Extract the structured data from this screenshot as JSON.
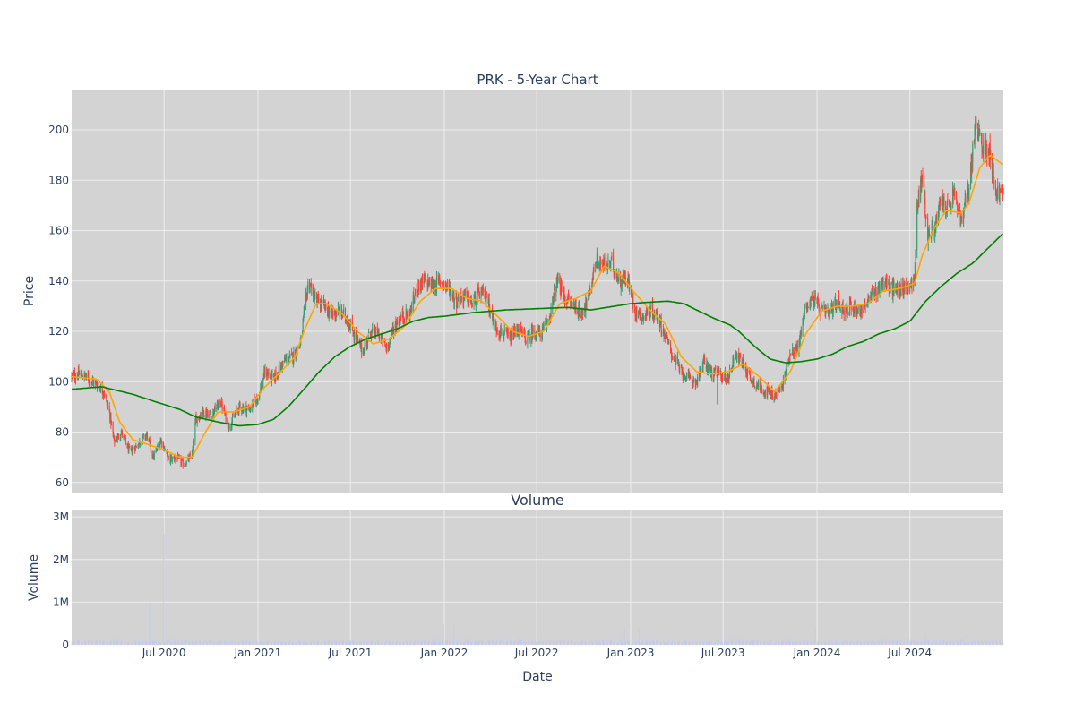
{
  "chart_data": [
    {
      "type": "candlestick",
      "title": "PRK - 5-Year Chart",
      "ylabel": "Price",
      "ylim": [
        56,
        216
      ],
      "yticks": [
        60,
        80,
        100,
        120,
        140,
        160,
        180,
        200
      ],
      "x_start": "2020-01-02",
      "x_end": "2024-12-31",
      "grid": true,
      "colors": {
        "background": "#d3d3d3",
        "grid": "#eeeeee",
        "up": "#3d9970",
        "down": "#ff4136",
        "ma_short": "#ffa500",
        "ma_long": "#008000"
      },
      "close_path": [
        [
          "2020-01-02",
          102
        ],
        [
          "2020-01-20",
          103
        ],
        [
          "2020-02-05",
          101
        ],
        [
          "2020-02-20",
          99
        ],
        [
          "2020-03-05",
          96
        ],
        [
          "2020-03-16",
          88
        ],
        [
          "2020-03-25",
          76
        ],
        [
          "2020-04-08",
          80
        ],
        [
          "2020-04-25",
          72
        ],
        [
          "2020-05-10",
          75
        ],
        [
          "2020-05-28",
          79
        ],
        [
          "2020-06-10",
          70
        ],
        [
          "2020-06-25",
          77
        ],
        [
          "2020-07-10",
          69
        ],
        [
          "2020-07-25",
          70
        ],
        [
          "2020-08-10",
          67
        ],
        [
          "2020-08-25",
          71
        ],
        [
          "2020-09-01",
          85
        ],
        [
          "2020-09-15",
          88
        ],
        [
          "2020-10-01",
          87
        ],
        [
          "2020-10-20",
          92
        ],
        [
          "2020-11-05",
          82
        ],
        [
          "2020-11-25",
          90
        ],
        [
          "2020-12-15",
          89
        ],
        [
          "2021-01-01",
          94
        ],
        [
          "2021-01-15",
          104
        ],
        [
          "2021-02-01",
          101
        ],
        [
          "2021-02-20",
          108
        ],
        [
          "2021-03-10",
          110
        ],
        [
          "2021-03-25",
          115
        ],
        [
          "2021-04-10",
          140
        ],
        [
          "2021-04-25",
          132
        ],
        [
          "2021-05-10",
          130
        ],
        [
          "2021-05-25",
          127
        ],
        [
          "2021-06-10",
          128
        ],
        [
          "2021-06-25",
          125
        ],
        [
          "2021-07-10",
          118
        ],
        [
          "2021-07-25",
          112
        ],
        [
          "2021-08-10",
          120
        ],
        [
          "2021-08-25",
          119
        ],
        [
          "2021-09-10",
          113
        ],
        [
          "2021-09-25",
          122
        ],
        [
          "2021-10-10",
          126
        ],
        [
          "2021-10-25",
          127
        ],
        [
          "2021-11-10",
          138
        ],
        [
          "2021-11-25",
          140
        ],
        [
          "2021-12-10",
          138
        ],
        [
          "2021-12-25",
          140
        ],
        [
          "2022-01-10",
          137
        ],
        [
          "2022-01-25",
          132
        ],
        [
          "2022-02-10",
          134
        ],
        [
          "2022-02-25",
          131
        ],
        [
          "2022-03-10",
          135
        ],
        [
          "2022-03-25",
          134
        ],
        [
          "2022-04-10",
          122
        ],
        [
          "2022-04-25",
          119
        ],
        [
          "2022-05-10",
          117
        ],
        [
          "2022-05-25",
          121
        ],
        [
          "2022-06-10",
          117
        ],
        [
          "2022-06-25",
          120
        ],
        [
          "2022-07-10",
          119
        ],
        [
          "2022-07-25",
          125
        ],
        [
          "2022-08-10",
          140
        ],
        [
          "2022-08-25",
          133
        ],
        [
          "2022-09-10",
          131
        ],
        [
          "2022-09-25",
          127
        ],
        [
          "2022-10-10",
          133
        ],
        [
          "2022-10-25",
          148
        ],
        [
          "2022-11-10",
          146
        ],
        [
          "2022-11-25",
          147
        ],
        [
          "2022-12-10",
          140
        ],
        [
          "2022-12-25",
          141
        ],
        [
          "2023-01-10",
          128
        ],
        [
          "2023-01-25",
          126
        ],
        [
          "2023-02-10",
          128
        ],
        [
          "2023-02-25",
          125
        ],
        [
          "2023-03-10",
          118
        ],
        [
          "2023-03-25",
          110
        ],
        [
          "2023-04-10",
          104
        ],
        [
          "2023-04-25",
          101
        ],
        [
          "2023-05-10",
          100
        ],
        [
          "2023-05-25",
          108
        ],
        [
          "2023-06-10",
          103
        ],
        [
          "2023-06-25",
          103
        ],
        [
          "2023-07-10",
          101
        ],
        [
          "2023-07-25",
          111
        ],
        [
          "2023-08-10",
          107
        ],
        [
          "2023-08-25",
          101
        ],
        [
          "2023-09-10",
          98
        ],
        [
          "2023-09-25",
          96
        ],
        [
          "2023-10-10",
          94
        ],
        [
          "2023-10-25",
          98
        ],
        [
          "2023-11-10",
          112
        ],
        [
          "2023-11-25",
          113
        ],
        [
          "2023-12-10",
          130
        ],
        [
          "2023-12-25",
          133
        ],
        [
          "2024-01-10",
          128
        ],
        [
          "2024-01-25",
          127
        ],
        [
          "2024-02-10",
          132
        ],
        [
          "2024-02-25",
          128
        ],
        [
          "2024-03-10",
          130
        ],
        [
          "2024-03-25",
          128
        ],
        [
          "2024-04-10",
          132
        ],
        [
          "2024-04-25",
          136
        ],
        [
          "2024-05-10",
          140
        ],
        [
          "2024-05-25",
          137
        ],
        [
          "2024-06-10",
          136
        ],
        [
          "2024-06-25",
          138
        ],
        [
          "2024-07-10",
          140
        ],
        [
          "2024-07-15",
          170
        ],
        [
          "2024-07-25",
          182
        ],
        [
          "2024-08-05",
          158
        ],
        [
          "2024-08-20",
          162
        ],
        [
          "2024-09-01",
          172
        ],
        [
          "2024-09-15",
          168
        ],
        [
          "2024-09-25",
          175
        ],
        [
          "2024-10-10",
          163
        ],
        [
          "2024-10-25",
          178
        ],
        [
          "2024-11-06",
          201
        ],
        [
          "2024-11-20",
          194
        ],
        [
          "2024-12-05",
          192
        ],
        [
          "2024-12-15",
          176
        ],
        [
          "2024-12-31",
          174
        ]
      ],
      "ma_short_path": [
        [
          "2020-01-02",
          102
        ],
        [
          "2020-02-20",
          101
        ],
        [
          "2020-03-16",
          96
        ],
        [
          "2020-04-05",
          84
        ],
        [
          "2020-05-01",
          77
        ],
        [
          "2020-06-01",
          75
        ],
        [
          "2020-07-01",
          73
        ],
        [
          "2020-08-01",
          70
        ],
        [
          "2020-08-25",
          70
        ],
        [
          "2020-09-20",
          80
        ],
        [
          "2020-10-15",
          88
        ],
        [
          "2020-11-15",
          88
        ],
        [
          "2020-12-15",
          90
        ],
        [
          "2021-01-15",
          98
        ],
        [
          "2021-02-15",
          104
        ],
        [
          "2021-03-15",
          110
        ],
        [
          "2021-04-01",
          120
        ],
        [
          "2021-04-25",
          131
        ],
        [
          "2021-05-15",
          131
        ],
        [
          "2021-06-15",
          127
        ],
        [
          "2021-07-15",
          120
        ],
        [
          "2021-08-15",
          115
        ],
        [
          "2021-09-15",
          117
        ],
        [
          "2021-10-15",
          122
        ],
        [
          "2021-11-15",
          132
        ],
        [
          "2021-12-15",
          137
        ],
        [
          "2022-01-15",
          137
        ],
        [
          "2022-02-15",
          133
        ],
        [
          "2022-03-15",
          132
        ],
        [
          "2022-04-15",
          126
        ],
        [
          "2022-05-15",
          120
        ],
        [
          "2022-06-15",
          118
        ],
        [
          "2022-07-15",
          120
        ],
        [
          "2022-08-15",
          131
        ],
        [
          "2022-09-15",
          133
        ],
        [
          "2022-10-15",
          136
        ],
        [
          "2022-11-10",
          146
        ],
        [
          "2022-12-10",
          143
        ],
        [
          "2023-01-10",
          135
        ],
        [
          "2023-02-10",
          128
        ],
        [
          "2023-03-10",
          123
        ],
        [
          "2023-04-10",
          110
        ],
        [
          "2023-05-10",
          104
        ],
        [
          "2023-06-10",
          103
        ],
        [
          "2023-07-10",
          104
        ],
        [
          "2023-08-10",
          107
        ],
        [
          "2023-09-10",
          102
        ],
        [
          "2023-10-10",
          96
        ],
        [
          "2023-11-10",
          104
        ],
        [
          "2023-12-10",
          119
        ],
        [
          "2024-01-10",
          128
        ],
        [
          "2024-02-10",
          130
        ],
        [
          "2024-03-10",
          130
        ],
        [
          "2024-04-10",
          131
        ],
        [
          "2024-05-10",
          136
        ],
        [
          "2024-06-10",
          137
        ],
        [
          "2024-07-10",
          139
        ],
        [
          "2024-07-25",
          150
        ],
        [
          "2024-08-15",
          160
        ],
        [
          "2024-09-10",
          168
        ],
        [
          "2024-10-10",
          167
        ],
        [
          "2024-10-25",
          171
        ],
        [
          "2024-11-15",
          185
        ],
        [
          "2024-12-05",
          190
        ],
        [
          "2024-12-31",
          186
        ]
      ],
      "ma_long_path": [
        [
          "2020-01-02",
          97
        ],
        [
          "2020-03-01",
          98
        ],
        [
          "2020-05-01",
          95
        ],
        [
          "2020-06-15",
          92
        ],
        [
          "2020-08-01",
          89
        ],
        [
          "2020-09-01",
          86
        ],
        [
          "2020-10-15",
          84
        ],
        [
          "2020-11-25",
          82.5
        ],
        [
          "2020-12-31",
          83
        ],
        [
          "2021-01-31",
          85
        ],
        [
          "2021-03-01",
          90
        ],
        [
          "2021-04-01",
          97
        ],
        [
          "2021-05-01",
          104
        ],
        [
          "2021-06-01",
          110
        ],
        [
          "2021-07-01",
          114
        ],
        [
          "2021-08-01",
          117
        ],
        [
          "2021-09-01",
          119
        ],
        [
          "2021-10-01",
          121
        ],
        [
          "2021-11-01",
          124
        ],
        [
          "2021-12-01",
          125.5
        ],
        [
          "2022-01-01",
          126
        ],
        [
          "2022-03-01",
          127.5
        ],
        [
          "2022-05-01",
          128.5
        ],
        [
          "2022-07-01",
          129
        ],
        [
          "2022-09-01",
          129.5
        ],
        [
          "2022-10-15",
          128.5
        ],
        [
          "2022-12-01",
          130
        ],
        [
          "2023-01-01",
          131
        ],
        [
          "2023-02-01",
          131.5
        ],
        [
          "2023-03-15",
          132
        ],
        [
          "2023-04-15",
          131
        ],
        [
          "2023-05-15",
          128
        ],
        [
          "2023-06-15",
          125
        ],
        [
          "2023-07-15",
          122.5
        ],
        [
          "2023-08-01",
          120
        ],
        [
          "2023-09-01",
          114
        ],
        [
          "2023-10-01",
          109
        ],
        [
          "2023-11-01",
          107.5
        ],
        [
          "2023-12-01",
          108
        ],
        [
          "2024-01-01",
          109
        ],
        [
          "2024-02-01",
          111
        ],
        [
          "2024-03-01",
          114
        ],
        [
          "2024-04-01",
          116
        ],
        [
          "2024-05-01",
          119
        ],
        [
          "2024-06-01",
          121
        ],
        [
          "2024-07-01",
          124
        ],
        [
          "2024-08-01",
          132
        ],
        [
          "2024-09-01",
          138
        ],
        [
          "2024-10-01",
          143
        ],
        [
          "2024-11-01",
          147
        ],
        [
          "2024-12-01",
          153
        ],
        [
          "2024-12-31",
          159
        ]
      ],
      "outliers": [
        {
          "date": "2023-06-20",
          "low": 91
        },
        {
          "date": "2020-03-10",
          "low": 92
        }
      ]
    },
    {
      "type": "bar",
      "title": "Volume",
      "ylabel": "Volume",
      "xlabel": "Date",
      "ylim": [
        0,
        3150000
      ],
      "yticks": [
        0,
        1000000,
        2000000,
        3000000
      ],
      "ytick_labels": [
        "0",
        "1M",
        "2M",
        "3M"
      ],
      "xticks": [
        "2020-07-01",
        "2021-01-01",
        "2021-07-01",
        "2022-01-01",
        "2022-07-01",
        "2023-01-01",
        "2023-07-01",
        "2024-01-01",
        "2024-07-01"
      ],
      "xtick_labels": [
        "Jul 2020",
        "Jan 2021",
        "Jul 2021",
        "Jan 2022",
        "Jul 2022",
        "Jan 2023",
        "Jul 2023",
        "Jan 2024",
        "Jul 2024"
      ],
      "bar_color": "#c3c9ec",
      "baseline_volume": 70000,
      "spikes": [
        {
          "date": "2020-06-03",
          "value": 1000000
        },
        {
          "date": "2020-06-30",
          "value": 2950000
        },
        {
          "date": "2020-07-01",
          "value": 2600000
        },
        {
          "date": "2021-12-31",
          "value": 470000
        },
        {
          "date": "2022-01-20",
          "value": 450000
        },
        {
          "date": "2022-12-20",
          "value": 430000
        },
        {
          "date": "2023-01-18",
          "value": 380000
        },
        {
          "date": "2023-12-29",
          "value": 350000
        },
        {
          "date": "2024-08-01",
          "value": 250000
        },
        {
          "date": "2024-10-20",
          "value": 220000
        }
      ]
    }
  ]
}
